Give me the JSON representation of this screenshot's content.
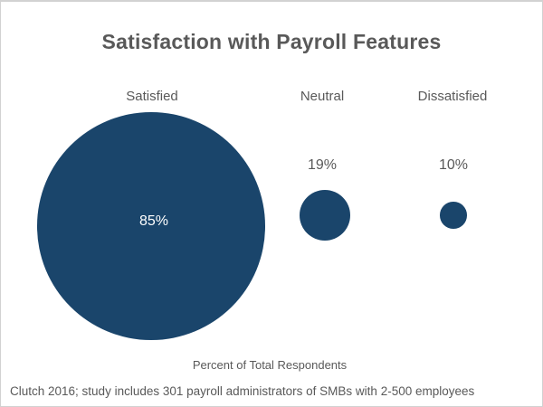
{
  "title": "Satisfaction with Payroll Features",
  "caption": "Percent of Total Respondents",
  "source_note": "Clutch 2016; study includes 301 payroll administrators of SMBs with 2-500 employees",
  "colors": {
    "bubble": "#1a456b",
    "text": "#595959",
    "value_label_inside": "#ffffff",
    "frame_border": "#d2d2d2",
    "background": "#ffffff"
  },
  "chart_data": {
    "type": "bubble",
    "title": "Satisfaction with Payroll Features",
    "categories": [
      "Satisfied",
      "Neutral",
      "Dissatisfied"
    ],
    "values": [
      85,
      19,
      10
    ],
    "value_labels": [
      "85%",
      "19%",
      "10%"
    ],
    "xlabel": "Percent of Total Respondents",
    "ylabel": "",
    "legend": false,
    "grid": false,
    "notes": "Bubble radius proportional to percentage value; largest bubble label shown inside in white, smaller bubble labels shown above in gray"
  }
}
